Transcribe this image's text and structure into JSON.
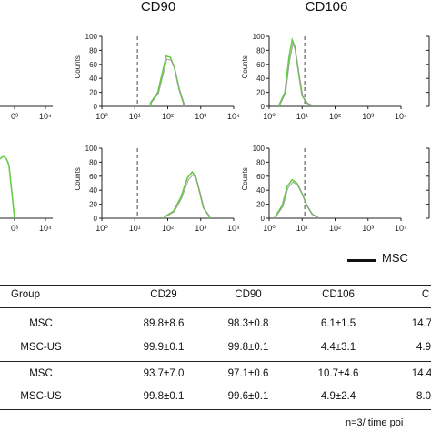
{
  "panel_titles": [
    "CD90",
    "CD106"
  ],
  "axis": {
    "y_label": "Counts",
    "y_ticks": [
      "0",
      "20",
      "40",
      "60",
      "80",
      "100"
    ],
    "x_ticks_main": [
      "10⁰",
      "10¹",
      "10²",
      "10³",
      "10⁴"
    ],
    "x_tick_left_col": "10⁴",
    "x_tick_left_col_partial": "0³"
  },
  "legend": {
    "label": "MSC",
    "color": "#111111"
  },
  "colors": {
    "sample": "#66cc44",
    "control": "#999999",
    "gate": "#444444"
  },
  "chart_data": {
    "type": "area",
    "xscale": "log",
    "xlim": [
      1,
      10000
    ],
    "ylim": [
      0,
      100
    ],
    "panels": [
      {
        "row": 1,
        "marker": "CD90",
        "gate_x": 12,
        "series": [
          {
            "x": [
              30,
              50,
              70,
              90,
              120,
              160,
              220,
              300
            ],
            "y": [
              5,
              20,
              50,
              72,
              70,
              55,
              25,
              4
            ]
          }
        ]
      },
      {
        "row": 1,
        "marker": "CD106",
        "gate_x": 12,
        "series": [
          {
            "x": [
              2,
              3,
              4,
              5,
              6,
              8,
              10,
              14,
              20
            ],
            "y": [
              2,
              20,
              70,
              95,
              85,
              45,
              15,
              5,
              1
            ]
          }
        ]
      },
      {
        "row": 2,
        "marker": "CD90",
        "gate_x": 12,
        "series": [
          {
            "x": [
              80,
              150,
              250,
              400,
              550,
              700,
              900,
              1200,
              1800
            ],
            "y": [
              2,
              10,
              30,
              58,
              66,
              60,
              40,
              15,
              3
            ]
          }
        ]
      },
      {
        "row": 2,
        "marker": "CD106",
        "gate_x": 12,
        "series": [
          {
            "x": [
              1.5,
              2.5,
              3.5,
              5,
              7,
              10,
              14,
              20,
              30
            ],
            "y": [
              2,
              18,
              45,
              55,
              50,
              35,
              18,
              6,
              1
            ]
          }
        ]
      }
    ]
  },
  "table": {
    "headers": [
      "Group",
      "CD29",
      "CD90",
      "CD106",
      "C"
    ],
    "rows": [
      [
        "MSC",
        "89.8±8.6",
        "98.3±0.8",
        "6.1±1.5",
        "14.7"
      ],
      [
        "MSC-US",
        "99.9±0.1",
        "99.8±0.1",
        "4.4±3.1",
        "4.9"
      ],
      [
        "MSC",
        "93.7±7.0",
        "97.1±0.6",
        "10.7±4.6",
        "14.4"
      ],
      [
        "MSC-US",
        "99.8±0.1",
        "99.6±0.1",
        "4.9±2.4",
        "8.0"
      ]
    ],
    "footnote": "n=3/ time poi"
  }
}
